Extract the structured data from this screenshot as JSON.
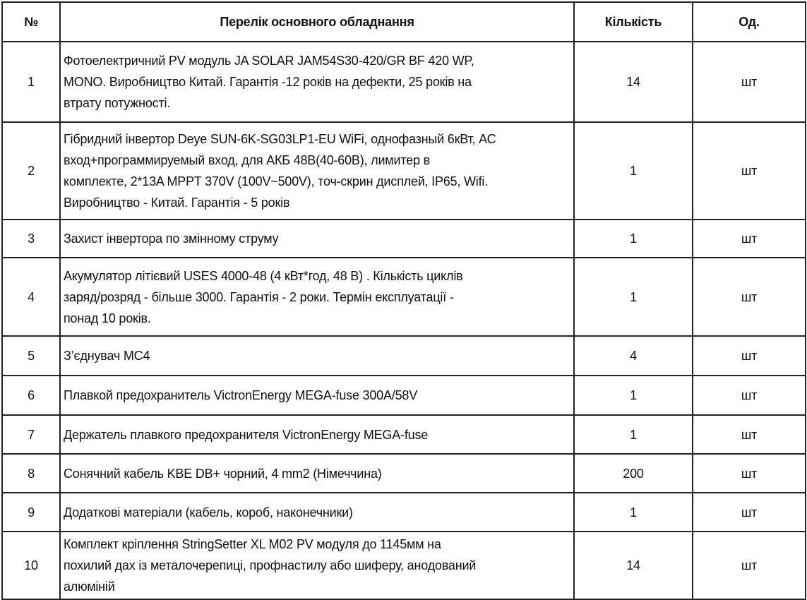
{
  "headers": {
    "num": "№",
    "name": "Перелік основного обладнання",
    "qty": "Кількість",
    "unit": "Од."
  },
  "rows": [
    {
      "num": "1",
      "name": "Фотоелектричний PV модуль JA SOLAR JAM54S30-420/GR BF 420 WP,\nMONO. Виробництво Китай. Гарантія -12 років на дефекти, 25 років на\nвтрату потужності.",
      "qty": "14",
      "unit": "шт"
    },
    {
      "num": "2",
      "name": "Гібридний інвертор Deye SUN-6K-SG03LP1-EU WiFi, однофазный 6кВт, АС\nвход+программируемый вход, для АКБ 48В(40-60В), лимитер в\nкомплекте, 2*13A MPPT 370V (100V~500V), точ-скрин дисплей, IP65, Wifi.\nВиробництво - Китай. Гарантія - 5 років",
      "qty": "1",
      "unit": "шт"
    },
    {
      "num": "3",
      "name": "Захист інвертора по змінному струму",
      "qty": "1",
      "unit": "шт"
    },
    {
      "num": "4",
      "name": "Акумулятор літієвий USES 4000-48 (4 кВт*год, 48 В) . Кількість циклів\nзаряд/розряд - більше 3000. Гарантія - 2 роки. Термін експлуатації -\nпонад 10 років.",
      "qty": "1",
      "unit": "шт"
    },
    {
      "num": "5",
      "name": "З’єднувач MC4",
      "qty": "4",
      "unit": "шт"
    },
    {
      "num": "6",
      "name": "Плавкой предохранитель VictronEnergy MEGA-fuse 300A/58V",
      "qty": "1",
      "unit": "шт"
    },
    {
      "num": "7",
      "name": "Держатель плавкого предохранителя VictronEnergy MEGA-fuse",
      "qty": "1",
      "unit": "шт"
    },
    {
      "num": "8",
      "name": "Сонячний кабель KBE DB+ чорний, 4 mm2  (Німеччина)",
      "qty": "200",
      "unit": "шт"
    },
    {
      "num": "9",
      "name": "Додаткові матеріали (кабель, короб, наконечники)",
      "qty": "1",
      "unit": "шт"
    },
    {
      "num": "10",
      "name": "Комплект кріплення StringSetter XL M02 PV модуля до 1145мм на\nпохилий дах із металочерепиці, профнастилу або шиферу, анодований\nалюміній",
      "qty": "14",
      "unit": "шт"
    }
  ]
}
